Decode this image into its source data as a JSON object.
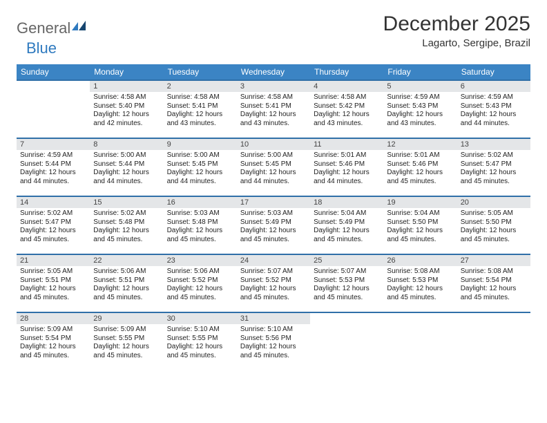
{
  "logo": {
    "part1": "General",
    "part2": "Blue"
  },
  "title": "December 2025",
  "location": "Lagarto, Sergipe, Brazil",
  "weekdays": [
    "Sunday",
    "Monday",
    "Tuesday",
    "Wednesday",
    "Thursday",
    "Friday",
    "Saturday"
  ],
  "colors": {
    "header_bg": "#3b84c4",
    "header_text": "#ffffff",
    "daynum_bg": "#e4e6e8",
    "row_border": "#2f6fa8",
    "text": "#222222"
  },
  "weeks": [
    [
      {
        "n": "",
        "sr": "",
        "ss": "",
        "dl": ""
      },
      {
        "n": "1",
        "sr": "4:58 AM",
        "ss": "5:40 PM",
        "dl": "12 hours and 42 minutes."
      },
      {
        "n": "2",
        "sr": "4:58 AM",
        "ss": "5:41 PM",
        "dl": "12 hours and 43 minutes."
      },
      {
        "n": "3",
        "sr": "4:58 AM",
        "ss": "5:41 PM",
        "dl": "12 hours and 43 minutes."
      },
      {
        "n": "4",
        "sr": "4:58 AM",
        "ss": "5:42 PM",
        "dl": "12 hours and 43 minutes."
      },
      {
        "n": "5",
        "sr": "4:59 AM",
        "ss": "5:43 PM",
        "dl": "12 hours and 43 minutes."
      },
      {
        "n": "6",
        "sr": "4:59 AM",
        "ss": "5:43 PM",
        "dl": "12 hours and 44 minutes."
      }
    ],
    [
      {
        "n": "7",
        "sr": "4:59 AM",
        "ss": "5:44 PM",
        "dl": "12 hours and 44 minutes."
      },
      {
        "n": "8",
        "sr": "5:00 AM",
        "ss": "5:44 PM",
        "dl": "12 hours and 44 minutes."
      },
      {
        "n": "9",
        "sr": "5:00 AM",
        "ss": "5:45 PM",
        "dl": "12 hours and 44 minutes."
      },
      {
        "n": "10",
        "sr": "5:00 AM",
        "ss": "5:45 PM",
        "dl": "12 hours and 44 minutes."
      },
      {
        "n": "11",
        "sr": "5:01 AM",
        "ss": "5:46 PM",
        "dl": "12 hours and 44 minutes."
      },
      {
        "n": "12",
        "sr": "5:01 AM",
        "ss": "5:46 PM",
        "dl": "12 hours and 45 minutes."
      },
      {
        "n": "13",
        "sr": "5:02 AM",
        "ss": "5:47 PM",
        "dl": "12 hours and 45 minutes."
      }
    ],
    [
      {
        "n": "14",
        "sr": "5:02 AM",
        "ss": "5:47 PM",
        "dl": "12 hours and 45 minutes."
      },
      {
        "n": "15",
        "sr": "5:02 AM",
        "ss": "5:48 PM",
        "dl": "12 hours and 45 minutes."
      },
      {
        "n": "16",
        "sr": "5:03 AM",
        "ss": "5:48 PM",
        "dl": "12 hours and 45 minutes."
      },
      {
        "n": "17",
        "sr": "5:03 AM",
        "ss": "5:49 PM",
        "dl": "12 hours and 45 minutes."
      },
      {
        "n": "18",
        "sr": "5:04 AM",
        "ss": "5:49 PM",
        "dl": "12 hours and 45 minutes."
      },
      {
        "n": "19",
        "sr": "5:04 AM",
        "ss": "5:50 PM",
        "dl": "12 hours and 45 minutes."
      },
      {
        "n": "20",
        "sr": "5:05 AM",
        "ss": "5:50 PM",
        "dl": "12 hours and 45 minutes."
      }
    ],
    [
      {
        "n": "21",
        "sr": "5:05 AM",
        "ss": "5:51 PM",
        "dl": "12 hours and 45 minutes."
      },
      {
        "n": "22",
        "sr": "5:06 AM",
        "ss": "5:51 PM",
        "dl": "12 hours and 45 minutes."
      },
      {
        "n": "23",
        "sr": "5:06 AM",
        "ss": "5:52 PM",
        "dl": "12 hours and 45 minutes."
      },
      {
        "n": "24",
        "sr": "5:07 AM",
        "ss": "5:52 PM",
        "dl": "12 hours and 45 minutes."
      },
      {
        "n": "25",
        "sr": "5:07 AM",
        "ss": "5:53 PM",
        "dl": "12 hours and 45 minutes."
      },
      {
        "n": "26",
        "sr": "5:08 AM",
        "ss": "5:53 PM",
        "dl": "12 hours and 45 minutes."
      },
      {
        "n": "27",
        "sr": "5:08 AM",
        "ss": "5:54 PM",
        "dl": "12 hours and 45 minutes."
      }
    ],
    [
      {
        "n": "28",
        "sr": "5:09 AM",
        "ss": "5:54 PM",
        "dl": "12 hours and 45 minutes."
      },
      {
        "n": "29",
        "sr": "5:09 AM",
        "ss": "5:55 PM",
        "dl": "12 hours and 45 minutes."
      },
      {
        "n": "30",
        "sr": "5:10 AM",
        "ss": "5:55 PM",
        "dl": "12 hours and 45 minutes."
      },
      {
        "n": "31",
        "sr": "5:10 AM",
        "ss": "5:56 PM",
        "dl": "12 hours and 45 minutes."
      },
      {
        "n": "",
        "sr": "",
        "ss": "",
        "dl": ""
      },
      {
        "n": "",
        "sr": "",
        "ss": "",
        "dl": ""
      },
      {
        "n": "",
        "sr": "",
        "ss": "",
        "dl": ""
      }
    ]
  ],
  "labels": {
    "sunrise": "Sunrise: ",
    "sunset": "Sunset: ",
    "daylight": "Daylight: "
  }
}
